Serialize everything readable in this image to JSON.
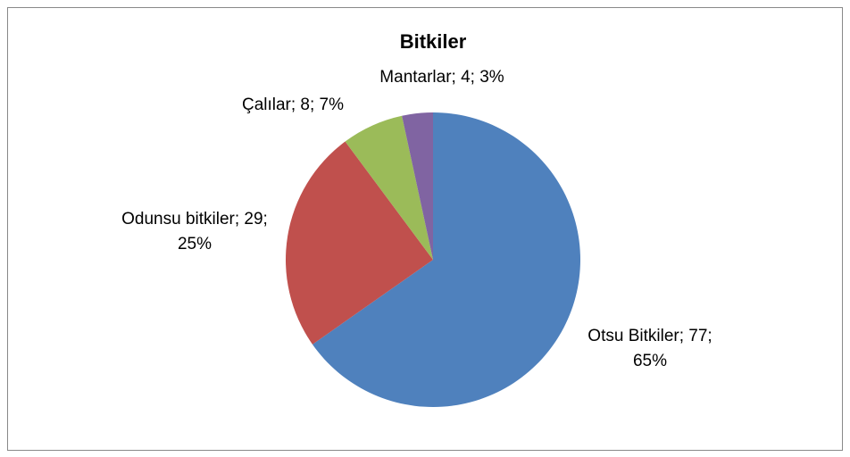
{
  "chart_data": {
    "type": "pie",
    "title": "Bitkiler",
    "values": [
      77,
      29,
      8,
      4
    ],
    "value_labels": [
      "Otsu Bitkiler; 77; 65%",
      "Odunsu bitkiler; 29; 25%",
      "Çalılar; 8; 7%",
      "Mantarlar; 4; 3%"
    ],
    "colors": [
      "#4f81bd",
      "#c0504d",
      "#9bbb59",
      "#8064a2"
    ]
  }
}
